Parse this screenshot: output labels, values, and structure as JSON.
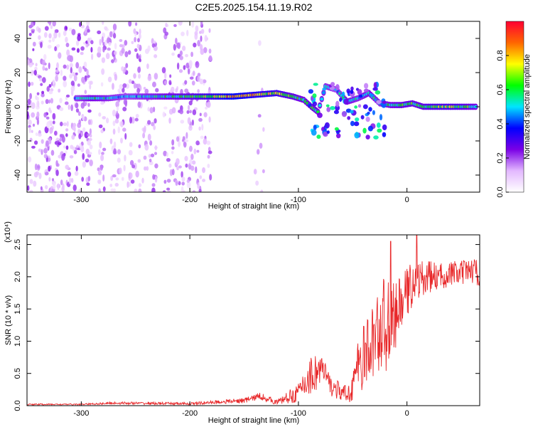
{
  "title": "C2E5.2025.154.11.19.R02",
  "chart_data": [
    {
      "type": "heatmap",
      "xlabel": "Height of straight line (km)",
      "ylabel": "Frequency (Hz)",
      "xlim": [
        -350,
        67
      ],
      "ylim": [
        -50,
        50
      ],
      "xticks": [
        -300,
        -200,
        -100,
        0
      ],
      "yticks": [
        -40,
        -20,
        0,
        20,
        40
      ],
      "colorbar": {
        "label": "Normalized spectral amplitude",
        "range": [
          0,
          1
        ],
        "ticks": [
          "0.0",
          "0.2",
          "0.4",
          "0.6",
          "0.8"
        ],
        "colormap": [
          "#ffffff",
          "#e3b8ff",
          "#7a00e6",
          "#0000ff",
          "#00e5ff",
          "#00ff00",
          "#ffff00",
          "#ff6600",
          "#ff0033"
        ]
      },
      "noise_regions": [
        [
          -350,
          -290,
          0.35
        ],
        [
          -285,
          -230,
          0.25
        ],
        [
          -225,
          -180,
          0.25
        ],
        [
          -140,
          -130,
          0.06
        ]
      ],
      "ridge": [
        {
          "x": -305,
          "y": 5,
          "amp": 0.45
        },
        {
          "x": -290,
          "y": 5,
          "amp": 0.55
        },
        {
          "x": -275,
          "y": 5,
          "amp": 0.5
        },
        {
          "x": -260,
          "y": 6,
          "amp": 0.45
        },
        {
          "x": -240,
          "y": 6,
          "amp": 0.5
        },
        {
          "x": -220,
          "y": 6,
          "amp": 0.55
        },
        {
          "x": -200,
          "y": 6,
          "amp": 0.6
        },
        {
          "x": -180,
          "y": 6,
          "amp": 0.7
        },
        {
          "x": -160,
          "y": 6,
          "amp": 0.85
        },
        {
          "x": -140,
          "y": 7,
          "amp": 0.75
        },
        {
          "x": -120,
          "y": 8,
          "amp": 0.7
        },
        {
          "x": -105,
          "y": 6,
          "amp": 0.6
        },
        {
          "x": -95,
          "y": 4,
          "amp": 0.55
        },
        {
          "x": -88,
          "y": 0,
          "amp": 0.6
        },
        {
          "x": -82,
          "y": -3,
          "amp": 0.55
        },
        {
          "x": -75,
          "y": 12,
          "amp": 0.5
        },
        {
          "x": -65,
          "y": 10,
          "amp": 0.45
        },
        {
          "x": -55,
          "y": 3,
          "amp": 0.55
        },
        {
          "x": -45,
          "y": 5,
          "amp": 0.5
        },
        {
          "x": -35,
          "y": 8,
          "amp": 0.55
        },
        {
          "x": -25,
          "y": 2,
          "amp": 0.5
        },
        {
          "x": -15,
          "y": 1,
          "amp": 0.55
        },
        {
          "x": -5,
          "y": 1,
          "amp": 0.6
        },
        {
          "x": 5,
          "y": 2,
          "amp": 0.6
        },
        {
          "x": 15,
          "y": 0,
          "amp": 0.6
        },
        {
          "x": 25,
          "y": 0,
          "amp": 0.65
        },
        {
          "x": 35,
          "y": 0,
          "amp": 0.65
        },
        {
          "x": 45,
          "y": 0,
          "amp": 0.65
        },
        {
          "x": 55,
          "y": 0,
          "amp": 0.6
        },
        {
          "x": 65,
          "y": 0,
          "amp": 0.55
        }
      ]
    },
    {
      "type": "line",
      "xlabel": "Height of straight line (km)",
      "ylabel": "SNR (10 * v/v)",
      "multiplier": "(x10⁴)",
      "xlim": [
        -350,
        67
      ],
      "ylim": [
        0,
        2.65
      ],
      "xticks": [
        -300,
        -200,
        -100,
        0
      ],
      "yticks": [
        0.0,
        0.5,
        1.0,
        1.5,
        2.0,
        2.5
      ],
      "series": [
        {
          "color": "#e8282a",
          "x": [
            -350,
            -300,
            -270,
            -200,
            -150,
            -135,
            -120,
            -100,
            -90,
            -82,
            -78,
            -70,
            -60,
            -55,
            -50,
            -45,
            -40,
            -35,
            -30,
            -25,
            -20,
            -15,
            -10,
            -5,
            0,
            5,
            10,
            15,
            20,
            30,
            40,
            50,
            60,
            67
          ],
          "y": [
            0.02,
            0.02,
            0.04,
            0.03,
            0.08,
            0.15,
            0.05,
            0.2,
            0.45,
            0.55,
            0.55,
            0.3,
            0.2,
            0.15,
            0.35,
            0.6,
            0.75,
            0.85,
            1.05,
            1.2,
            1.25,
            1.3,
            1.4,
            1.6,
            1.75,
            1.9,
            1.95,
            1.95,
            2.0,
            2.0,
            2.05,
            2.05,
            2.1,
            2.05
          ],
          "noise": [
            0.01,
            0.01,
            0.02,
            0.02,
            0.04,
            0.06,
            0.04,
            0.15,
            0.3,
            0.35,
            0.25,
            0.15,
            0.15,
            0.15,
            0.3,
            0.4,
            0.5,
            0.6,
            0.6,
            0.7,
            0.8,
            0.6,
            0.5,
            0.45,
            0.4,
            0.35,
            0.3,
            0.3,
            0.25,
            0.2,
            0.2,
            0.2,
            0.2,
            0.2
          ]
        }
      ],
      "peaks": [
        {
          "x": -15,
          "y": 2.55
        },
        {
          "x": 9,
          "y": 2.65
        }
      ]
    }
  ]
}
